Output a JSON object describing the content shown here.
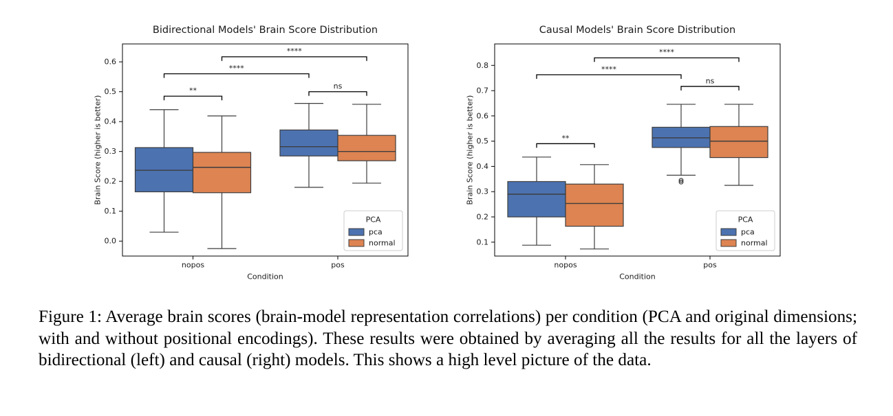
{
  "colors": {
    "pca": "#4C72B0",
    "normal": "#DD8452",
    "median": "#3d3d3d",
    "edge": "#3d3d3d"
  },
  "chart_data": [
    {
      "type": "box",
      "title": "Bidirectional Models' Brain Score Distribution",
      "xlabel": "Condition",
      "ylabel": "Brain Score (higher is better)",
      "categories": [
        "nopos",
        "pos"
      ],
      "ylim": [
        -0.05,
        0.66
      ],
      "yticks": [
        0.0,
        0.1,
        0.2,
        0.3,
        0.4,
        0.5,
        0.6
      ],
      "ytick_labels": [
        "0.0",
        "0.1",
        "0.2",
        "0.3",
        "0.4",
        "0.5",
        "0.6"
      ],
      "legend": {
        "title": "PCA",
        "location": "lower right",
        "entries": [
          "pca",
          "normal"
        ]
      },
      "series": [
        {
          "name": "pca",
          "boxes": [
            {
              "whislo": 0.03,
              "q1": 0.165,
              "med": 0.237,
              "q3": 0.313,
              "whishi": 0.44,
              "fliers": []
            },
            {
              "whislo": 0.18,
              "q1": 0.285,
              "med": 0.316,
              "q3": 0.372,
              "whishi": 0.461,
              "fliers": []
            }
          ]
        },
        {
          "name": "normal",
          "boxes": [
            {
              "whislo": -0.025,
              "q1": 0.162,
              "med": 0.247,
              "q3": 0.297,
              "whishi": 0.419,
              "fliers": []
            },
            {
              "whislo": 0.194,
              "q1": 0.269,
              "med": 0.3,
              "q3": 0.354,
              "whishi": 0.458,
              "fliers": []
            }
          ]
        }
      ],
      "annotations": [
        {
          "label": "**",
          "from": [
            0,
            "pca"
          ],
          "to": [
            0,
            "normal"
          ],
          "y": 0.485
        },
        {
          "label": "ns",
          "from": [
            1,
            "pca"
          ],
          "to": [
            1,
            "normal"
          ],
          "y": 0.5
        },
        {
          "label": "****",
          "from": [
            0,
            "pca"
          ],
          "to": [
            1,
            "pca"
          ],
          "y": 0.56
        },
        {
          "label": "****",
          "from": [
            0,
            "normal"
          ],
          "to": [
            1,
            "normal"
          ],
          "y": 0.617
        }
      ]
    },
    {
      "type": "box",
      "title": "Causal Models' Brain Score Distribution",
      "xlabel": "Condition",
      "ylabel": "Brain Score (higher is better)",
      "categories": [
        "nopos",
        "pos"
      ],
      "ylim": [
        0.045,
        0.885
      ],
      "yticks": [
        0.1,
        0.2,
        0.3,
        0.4,
        0.5,
        0.6,
        0.7,
        0.8
      ],
      "ytick_labels": [
        "0.1",
        "0.2",
        "0.3",
        "0.4",
        "0.5",
        "0.6",
        "0.7",
        "0.8"
      ],
      "legend": {
        "title": "PCA",
        "location": "lower right",
        "entries": [
          "pca",
          "normal"
        ]
      },
      "series": [
        {
          "name": "pca",
          "boxes": [
            {
              "whislo": 0.088,
              "q1": 0.2,
              "med": 0.29,
              "q3": 0.34,
              "whishi": 0.437,
              "fliers": []
            },
            {
              "whislo": 0.365,
              "q1": 0.475,
              "med": 0.513,
              "q3": 0.555,
              "whishi": 0.646,
              "fliers": [
                0.345,
                0.338
              ]
            }
          ]
        },
        {
          "name": "normal",
          "boxes": [
            {
              "whislo": 0.073,
              "q1": 0.163,
              "med": 0.253,
              "q3": 0.33,
              "whishi": 0.407,
              "fliers": []
            },
            {
              "whislo": 0.325,
              "q1": 0.435,
              "med": 0.5,
              "q3": 0.558,
              "whishi": 0.646,
              "fliers": []
            }
          ]
        }
      ],
      "annotations": [
        {
          "label": "**",
          "from": [
            0,
            "pca"
          ],
          "to": [
            0,
            "normal"
          ],
          "y": 0.49
        },
        {
          "label": "ns",
          "from": [
            1,
            "pca"
          ],
          "to": [
            1,
            "normal"
          ],
          "y": 0.717
        },
        {
          "label": "****",
          "from": [
            0,
            "pca"
          ],
          "to": [
            1,
            "pca"
          ],
          "y": 0.763
        },
        {
          "label": "****",
          "from": [
            0,
            "normal"
          ],
          "to": [
            1,
            "normal"
          ],
          "y": 0.83
        }
      ]
    }
  ],
  "caption": "Figure 1: Average brain scores (brain-model representation correlations) per condition (PCA and original dimensions; with and without positional encodings). These results were obtained by averaging all the results for all the layers of bidirectional (left) and causal (right) models. This shows a high level picture of the data."
}
